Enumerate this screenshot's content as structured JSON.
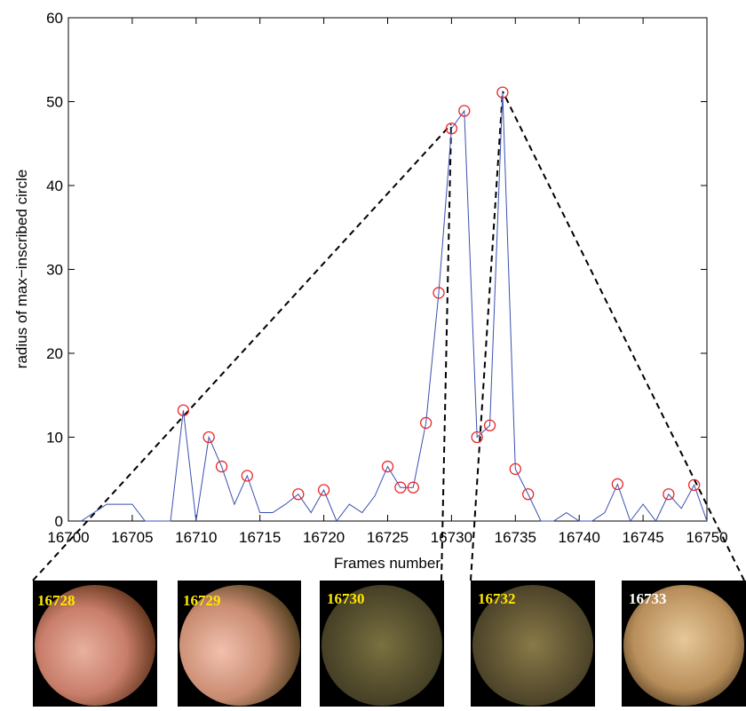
{
  "chart_data": {
    "type": "line",
    "x_label": "Frames number",
    "y_label": "radius of max−inscribed circle",
    "x": [
      16700,
      16701,
      16702,
      16703,
      16704,
      16705,
      16706,
      16707,
      16708,
      16709,
      16710,
      16711,
      16712,
      16713,
      16714,
      16715,
      16716,
      16717,
      16718,
      16719,
      16720,
      16721,
      16722,
      16723,
      16724,
      16725,
      16726,
      16727,
      16728,
      16729,
      16730,
      16731,
      16732,
      16733,
      16734,
      16735,
      16736,
      16737,
      16738,
      16739,
      16740,
      16741,
      16742,
      16743,
      16744,
      16745,
      16746,
      16747,
      16748,
      16749,
      16750
    ],
    "values": [
      null,
      0,
      1,
      2,
      2,
      2,
      0,
      0,
      0,
      13.2,
      0,
      10,
      6.5,
      2,
      5.4,
      1,
      1,
      2,
      3.2,
      1,
      3.7,
      0,
      2,
      1,
      3,
      6.5,
      4,
      4,
      11.7,
      27.2,
      46.8,
      48.9,
      10,
      11.4,
      51.1,
      6.2,
      3.2,
      0,
      0,
      1,
      0,
      0,
      1,
      4.4,
      0,
      2,
      0,
      3.2,
      1.5,
      4.3,
      0
    ],
    "circled_x": [
      16709,
      16711,
      16712,
      16714,
      16718,
      16720,
      16725,
      16726,
      16727,
      16728,
      16729,
      16730,
      16731,
      16732,
      16733,
      16734,
      16735,
      16736,
      16743,
      16747,
      16749
    ],
    "line_color": "#3a4fb0",
    "marker_color": "#e8262a",
    "xlim": [
      16700,
      16750
    ],
    "xticks": [
      16700,
      16705,
      16710,
      16715,
      16720,
      16725,
      16730,
      16735,
      16740,
      16745,
      16750
    ],
    "ylim": [
      0,
      60
    ],
    "yticks": [
      0,
      10,
      20,
      30,
      40,
      50,
      60
    ]
  },
  "thumbnails": [
    {
      "label": "16728"
    },
    {
      "label": "16729"
    },
    {
      "label": "16730"
    },
    {
      "label": "16732"
    },
    {
      "label": "16733"
    }
  ]
}
